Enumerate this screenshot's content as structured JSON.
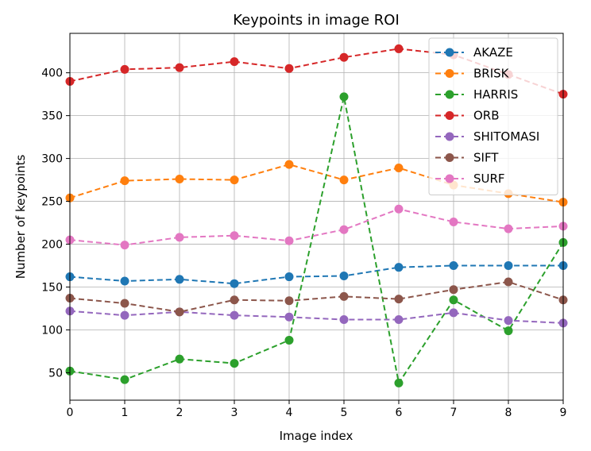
{
  "chart_data": {
    "type": "line",
    "title": "Keypoints in image ROI",
    "xlabel": "Image index",
    "ylabel": "Number of keypoints",
    "x": [
      0,
      1,
      2,
      3,
      4,
      5,
      6,
      7,
      8,
      9
    ],
    "xlim": [
      0,
      9
    ],
    "ylim": [
      18,
      446
    ],
    "xticks": [
      0,
      1,
      2,
      3,
      4,
      5,
      6,
      7,
      8,
      9
    ],
    "yticks": [
      50,
      100,
      150,
      200,
      250,
      300,
      350,
      400
    ],
    "grid": true,
    "legend_position": "top-right",
    "line_style": "dashed",
    "marker": "circle",
    "series": [
      {
        "name": "AKAZE",
        "color": "#1f77b4",
        "values": [
          162,
          157,
          159,
          154,
          162,
          163,
          173,
          175,
          175,
          175
        ]
      },
      {
        "name": "BRISK",
        "color": "#ff7f0e",
        "values": [
          254,
          274,
          276,
          275,
          293,
          275,
          289,
          269,
          259,
          249
        ]
      },
      {
        "name": "HARRIS",
        "color": "#2ca02c",
        "values": [
          52,
          42,
          66,
          61,
          88,
          372,
          38,
          135,
          99,
          202
        ]
      },
      {
        "name": "ORB",
        "color": "#d62728",
        "values": [
          390,
          404,
          406,
          413,
          405,
          418,
          428,
          421,
          398,
          375
        ]
      },
      {
        "name": "SHITOMASI",
        "color": "#9467bd",
        "values": [
          122,
          117,
          121,
          117,
          115,
          112,
          112,
          120,
          111,
          108
        ]
      },
      {
        "name": "SIFT",
        "color": "#8c564b",
        "values": [
          137,
          131,
          121,
          135,
          134,
          139,
          136,
          147,
          156,
          135
        ]
      },
      {
        "name": "SURF",
        "color": "#e377c2",
        "values": [
          205,
          199,
          208,
          210,
          204,
          217,
          241,
          226,
          218,
          221
        ]
      }
    ]
  }
}
